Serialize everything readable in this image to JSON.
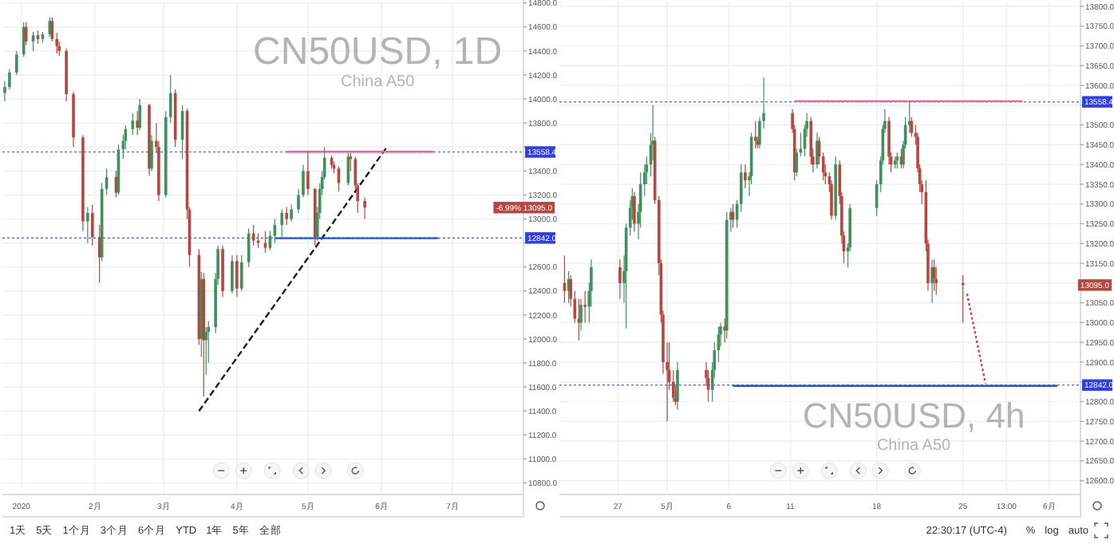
{
  "chart_data": [
    {
      "type": "candlestick",
      "grid": true,
      "x": [
        "2019-12-25",
        "2019-12-27",
        "2019-12-30",
        "2020-01-02",
        "2020-01-03",
        "2020-01-06",
        "2020-01-08",
        "2020-01-10",
        "2020-01-13",
        "2020-01-14",
        "2020-01-16",
        "2020-01-17",
        "2020-01-20",
        "2020-01-23",
        "2020-01-27",
        "2020-01-29",
        "2020-01-31",
        "2020-02-03",
        "2020-02-04",
        "2020-02-06",
        "2020-02-10",
        "2020-02-11",
        "2020-02-13",
        "2020-02-14",
        "2020-02-17",
        "2020-02-19",
        "2020-02-20",
        "2020-02-24",
        "2020-02-25",
        "2020-02-27",
        "2020-02-28",
        "2020-03-02",
        "2020-03-04",
        "2020-03-06",
        "2020-03-09",
        "2020-03-11",
        "2020-03-12",
        "2020-03-16",
        "2020-03-17",
        "2020-03-18",
        "2020-03-19",
        "2020-03-20",
        "2020-03-23",
        "2020-03-24",
        "2020-03-26",
        "2020-03-30",
        "2020-04-01",
        "2020-04-03",
        "2020-04-06",
        "2020-04-08",
        "2020-04-10",
        "2020-04-13",
        "2020-04-15",
        "2020-04-17",
        "2020-04-20",
        "2020-04-22",
        "2020-04-24",
        "2020-04-27",
        "2020-04-29",
        "2020-05-01",
        "2020-05-04",
        "2020-05-05",
        "2020-05-06",
        "2020-05-07",
        "2020-05-08",
        "2020-05-11",
        "2020-05-12",
        "2020-05-14",
        "2020-05-18",
        "2020-05-19",
        "2020-05-21",
        "2020-05-22",
        "2020-05-25"
      ],
      "ohlc": [
        [
          14050,
          14150,
          13980,
          14100
        ],
        [
          14100,
          14250,
          14080,
          14220
        ],
        [
          14220,
          14400,
          14200,
          14370
        ],
        [
          14370,
          14640,
          14350,
          14600
        ],
        [
          14600,
          14640,
          14450,
          14480
        ],
        [
          14480,
          14560,
          14400,
          14530
        ],
        [
          14530,
          14570,
          14460,
          14500
        ],
        [
          14500,
          14560,
          14470,
          14540
        ],
        [
          14540,
          14680,
          14520,
          14650
        ],
        [
          14650,
          14680,
          14480,
          14500
        ],
        [
          14500,
          14550,
          14380,
          14440
        ],
        [
          14440,
          14480,
          14360,
          14400
        ],
        [
          14400,
          14420,
          13980,
          14040
        ],
        [
          14040,
          14060,
          13600,
          13680
        ],
        [
          13680,
          13700,
          12900,
          12980
        ],
        [
          12980,
          13100,
          12800,
          13050
        ],
        [
          13050,
          13120,
          12780,
          12850
        ],
        [
          12850,
          12950,
          12470,
          12680
        ],
        [
          12680,
          13300,
          12650,
          13250
        ],
        [
          13250,
          13420,
          13200,
          13350
        ],
        [
          13350,
          13400,
          13180,
          13220
        ],
        [
          13220,
          13620,
          13200,
          13580
        ],
        [
          13580,
          13700,
          13500,
          13650
        ],
        [
          13650,
          13780,
          13580,
          13750
        ],
        [
          13750,
          13880,
          13700,
          13820
        ],
        [
          13820,
          13900,
          13700,
          13760
        ],
        [
          13760,
          14000,
          13740,
          13950
        ],
        [
          13950,
          13960,
          13360,
          13420
        ],
        [
          13420,
          13700,
          13400,
          13650
        ],
        [
          13650,
          13800,
          13550,
          13600
        ],
        [
          13600,
          13650,
          13150,
          13200
        ],
        [
          13200,
          13900,
          13180,
          13850
        ],
        [
          13850,
          14200,
          13800,
          14050
        ],
        [
          14050,
          14080,
          13600,
          13660
        ],
        [
          13660,
          13950,
          13500,
          13900
        ],
        [
          13900,
          13920,
          13000,
          13080
        ],
        [
          13080,
          13100,
          12600,
          12700
        ],
        [
          12700,
          12750,
          11950,
          12000
        ],
        [
          12000,
          12560,
          11850,
          12500
        ],
        [
          12500,
          12550,
          11520,
          11990
        ],
        [
          11990,
          12100,
          11700,
          12060
        ],
        [
          12060,
          12150,
          11800,
          12100
        ],
        [
          12100,
          12550,
          12050,
          12500
        ],
        [
          12500,
          12780,
          12450,
          12750
        ],
        [
          12750,
          12780,
          12350,
          12400
        ],
        [
          12400,
          12700,
          12380,
          12650
        ],
        [
          12650,
          12700,
          12350,
          12420
        ],
        [
          12420,
          12700,
          12400,
          12640
        ],
        [
          12640,
          12920,
          12600,
          12880
        ],
        [
          12880,
          12950,
          12780,
          12820
        ],
        [
          12820,
          12880,
          12760,
          12800
        ],
        [
          12800,
          12900,
          12720,
          12760
        ],
        [
          12760,
          12900,
          12740,
          12860
        ],
        [
          12860,
          13000,
          12800,
          12950
        ],
        [
          12950,
          13080,
          12850,
          13050
        ],
        [
          13050,
          13100,
          12950,
          13000
        ],
        [
          13000,
          13120,
          12980,
          13080
        ],
        [
          13080,
          13250,
          13050,
          13200
        ],
        [
          13200,
          13450,
          13180,
          13400
        ],
        [
          13400,
          13560,
          13200,
          13250
        ],
        [
          13250,
          13260,
          12780,
          12850
        ],
        [
          12850,
          13100,
          12820,
          13050
        ],
        [
          13050,
          13300,
          13000,
          13250
        ],
        [
          13250,
          13400,
          13200,
          13350
        ],
        [
          13350,
          13600,
          13330,
          13510
        ],
        [
          13510,
          13530,
          13420,
          13450
        ],
        [
          13450,
          13480,
          13380,
          13420
        ],
        [
          13420,
          13440,
          13230,
          13300
        ],
        [
          13300,
          13550,
          13280,
          13520
        ],
        [
          13520,
          13550,
          13400,
          13500
        ],
        [
          13500,
          13520,
          13250,
          13280
        ],
        [
          13280,
          13300,
          13050,
          13150
        ],
        [
          13150,
          13180,
          13000,
          13095
        ]
      ],
      "colors": [
        "#3f8f5f",
        "#3f8f5f",
        "#3f8f5f",
        "#3f8f5f",
        "#b5473f",
        "#3f8f5f",
        "#b5473f",
        "#3f8f5f",
        "#3f8f5f",
        "#b5473f",
        "#b5473f",
        "#b5473f",
        "#b5473f",
        "#b5473f",
        "#b5473f",
        "#3f8f5f",
        "#b5473f",
        "#b5473f",
        "#3f8f5f",
        "#3f8f5f",
        "#b5473f",
        "#3f8f5f",
        "#3f8f5f",
        "#3f8f5f",
        "#3f8f5f",
        "#b5473f",
        "#3f8f5f",
        "#b5473f",
        "#3f8f5f",
        "#b5473f",
        "#b5473f",
        "#3f8f5f",
        "#3f8f5f",
        "#b5473f",
        "#3f8f5f",
        "#b5473f",
        "#b5473f",
        "#b5473f",
        "#3f8f5f",
        "#b5473f",
        "#3f8f5f",
        "#3f8f5f",
        "#3f8f5f",
        "#3f8f5f",
        "#b5473f",
        "#3f8f5f",
        "#b5473f",
        "#3f8f5f",
        "#3f8f5f",
        "#b5473f",
        "#b5473f",
        "#b5473f",
        "#3f8f5f",
        "#3f8f5f",
        "#3f8f5f",
        "#b5473f",
        "#3f8f5f",
        "#3f8f5f",
        "#3f8f5f",
        "#b5473f",
        "#b5473f",
        "#3f8f5f",
        "#3f8f5f",
        "#3f8f5f",
        "#3f8f5f",
        "#b5473f",
        "#b5473f",
        "#b5473f",
        "#3f8f5f",
        "#b5473f",
        "#b5473f",
        "#b5473f",
        "#b5473f"
      ],
      "xlim": [
        "2019-12-24",
        "2020-07-31"
      ],
      "xticks": [
        {
          "value": "2020-01-01",
          "label": "2020"
        },
        {
          "value": "2020-02-01",
          "label": "2月"
        },
        {
          "value": "2020-03-01",
          "label": "3月"
        },
        {
          "value": "2020-04-01",
          "label": "4月"
        },
        {
          "value": "2020-05-01",
          "label": "5月"
        },
        {
          "value": "2020-06-01",
          "label": "6月"
        },
        {
          "value": "2020-07-01",
          "label": "7月"
        }
      ],
      "ylim": [
        10704,
        14805
      ],
      "yticks": [
        {
          "value": 10800,
          "label": "10800.0"
        },
        {
          "value": 11000,
          "label": "11000.0"
        },
        {
          "value": 11200,
          "label": "11200.0"
        },
        {
          "value": 11400,
          "label": "11400.0"
        },
        {
          "value": 11600,
          "label": "11600.0"
        },
        {
          "value": 11800,
          "label": "11800.0"
        },
        {
          "value": 12000,
          "label": "12000.0"
        },
        {
          "value": 12200,
          "label": "12200.0"
        },
        {
          "value": 12400,
          "label": "12400.0"
        },
        {
          "value": 12600,
          "label": "12600.0"
        },
        {
          "value": 12800,
          "label": null
        },
        {
          "value": 13000,
          "label": "13000.0"
        },
        {
          "value": 13200,
          "label": "13200.0"
        },
        {
          "value": 13400,
          "label": "13400.0"
        },
        {
          "value": 13600,
          "label": null
        },
        {
          "value": 13800,
          "label": "13800.0"
        },
        {
          "value": 14000,
          "label": "14000.0"
        },
        {
          "value": 14200,
          "label": "14200.0"
        },
        {
          "value": 14400,
          "label": "14400.0"
        },
        {
          "value": 14600,
          "label": "14600.0"
        },
        {
          "value": 14800,
          "label": "14800.0"
        }
      ],
      "ref_lines": [
        {
          "axis": "y",
          "value": 13558.4,
          "label": "13558.4",
          "color": "#2f3dea",
          "line_style": "dotted"
        },
        {
          "axis": "y",
          "value": 12842.0,
          "label": "12842.0",
          "color": "#2f3dea",
          "line_style": "dotted"
        }
      ],
      "series": [
        {
          "type": "line",
          "x": [
            "2020-03-16",
            "2020-06-03"
          ],
          "values": [
            11400,
            13590
          ],
          "color": "#1a1a2e",
          "line_style": "dashed"
        },
        {
          "type": "line",
          "x": [
            "2020-04-22",
            "2020-06-23"
          ],
          "values": [
            13560,
            13560
          ],
          "color": "#f06292",
          "line_style": "solid"
        },
        {
          "type": "line",
          "x": [
            "2020-04-17",
            "2020-06-25"
          ],
          "values": [
            12840,
            12840
          ],
          "color": "#1e53e5",
          "line_style": "solid"
        }
      ],
      "annotations": [
        "CN50USD, 1D",
        "China A50",
        "-6.99%  13095.0"
      ]
    },
    {
      "type": "candlestick",
      "grid": true,
      "x": [
        "2020-04-22T16:00",
        "2020-04-23T00:00",
        "2020-04-23T04:00",
        "2020-04-23T12:00",
        "2020-04-23T20:00",
        "2020-04-24T00:00",
        "2020-04-24T08:00",
        "2020-04-24T16:00",
        "2020-04-24T20:00",
        "2020-04-27T04:00",
        "2020-04-27T12:00",
        "2020-04-27T16:00",
        "2020-04-28T00:00",
        "2020-04-28T04:00",
        "2020-04-28T08:00",
        "2020-04-28T16:00",
        "2020-04-28T20:00",
        "2020-04-29T04:00",
        "2020-04-29T08:00",
        "2020-04-29T16:00",
        "2020-04-29T20:00",
        "2020-04-30T00:00",
        "2020-04-30T08:00",
        "2020-04-30T12:00",
        "2020-04-30T16:00",
        "2020-05-01T00:00",
        "2020-05-01T04:00",
        "2020-05-01T12:00",
        "2020-05-01T16:00",
        "2020-05-01T20:00",
        "2020-05-04T04:00",
        "2020-05-04T08:00",
        "2020-05-04T16:00",
        "2020-05-04T20:00",
        "2020-05-05T04:00",
        "2020-05-05T08:00",
        "2020-05-05T16:00",
        "2020-05-05T20:00",
        "2020-05-06T04:00",
        "2020-05-06T08:00",
        "2020-05-06T16:00",
        "2020-05-07T00:00",
        "2020-05-07T08:00",
        "2020-05-07T16:00",
        "2020-05-07T20:00",
        "2020-05-08T04:00",
        "2020-05-08T08:00",
        "2020-05-08T12:00",
        "2020-05-08T20:00",
        "2020-05-11T04:00",
        "2020-05-11T08:00",
        "2020-05-11T12:00",
        "2020-05-11T20:00",
        "2020-05-12T04:00",
        "2020-05-12T08:00",
        "2020-05-12T16:00",
        "2020-05-12T20:00",
        "2020-05-13T04:00",
        "2020-05-13T08:00",
        "2020-05-13T16:00",
        "2020-05-13T20:00",
        "2020-05-14T04:00",
        "2020-05-14T08:00",
        "2020-05-14T16:00",
        "2020-05-15T00:00",
        "2020-05-15T04:00",
        "2020-05-15T08:00",
        "2020-05-15T16:00",
        "2020-05-15T20:00",
        "2020-05-18T00:00",
        "2020-05-18T08:00",
        "2020-05-18T12:00",
        "2020-05-18T16:00",
        "2020-05-19T00:00",
        "2020-05-19T04:00",
        "2020-05-19T12:00",
        "2020-05-19T16:00",
        "2020-05-20T00:00",
        "2020-05-20T04:00",
        "2020-05-20T08:00",
        "2020-05-20T16:00",
        "2020-05-20T20:00",
        "2020-05-21T04:00",
        "2020-05-21T08:00",
        "2020-05-21T12:00",
        "2020-05-21T16:00",
        "2020-05-22T00:00",
        "2020-05-22T04:00",
        "2020-05-22T12:00",
        "2020-05-22T16:00",
        "2020-05-22T20:00",
        "2020-05-25T00:00"
      ],
      "ohlc": [
        [
          13100,
          13170,
          13050,
          13080
        ],
        [
          13080,
          13130,
          13050,
          13110
        ],
        [
          13110,
          13120,
          13040,
          13060
        ],
        [
          13060,
          13080,
          13000,
          13010
        ],
        [
          13010,
          13060,
          12955,
          13000
        ],
        [
          13000,
          13060,
          12980,
          13045
        ],
        [
          13045,
          13080,
          13000,
          13040
        ],
        [
          13040,
          13100,
          13000,
          13080
        ],
        [
          13080,
          13160,
          13040,
          13140
        ],
        [
          13140,
          13160,
          13060,
          13100
        ],
        [
          13100,
          13170,
          13050,
          13130
        ],
        [
          13130,
          13250,
          12985,
          13240
        ],
        [
          13240,
          13310,
          13220,
          13290
        ],
        [
          13290,
          13340,
          13260,
          13320
        ],
        [
          13320,
          13330,
          13230,
          13250
        ],
        [
          13250,
          13300,
          13210,
          13280
        ],
        [
          13280,
          13380,
          13240,
          13350
        ],
        [
          13350,
          13400,
          13320,
          13380
        ],
        [
          13380,
          13420,
          13350,
          13400
        ],
        [
          13400,
          13480,
          13370,
          13450
        ],
        [
          13450,
          13550,
          13410,
          13460
        ],
        [
          13460,
          13470,
          13300,
          13310
        ],
        [
          13310,
          13320,
          13120,
          13150
        ],
        [
          13150,
          13160,
          13000,
          13020
        ],
        [
          13020,
          13030,
          12870,
          12900
        ],
        [
          12900,
          12950,
          12750,
          12880
        ],
        [
          12880,
          12950,
          12830,
          12850
        ],
        [
          12850,
          12880,
          12800,
          12810
        ],
        [
          12810,
          12840,
          12790,
          12800
        ],
        [
          12800,
          12900,
          12780,
          12880
        ],
        [
          12880,
          12900,
          12840,
          12860
        ],
        [
          12860,
          12880,
          12800,
          12830
        ],
        [
          12830,
          12900,
          12800,
          12880
        ],
        [
          12880,
          12950,
          12860,
          12930
        ],
        [
          12930,
          12990,
          12900,
          12970
        ],
        [
          12970,
          13000,
          12940,
          12990
        ],
        [
          12990,
          13010,
          12950,
          12980
        ],
        [
          12980,
          13280,
          12960,
          13260
        ],
        [
          13260,
          13290,
          13230,
          13280
        ],
        [
          13280,
          13300,
          13240,
          13260
        ],
        [
          13260,
          13310,
          13240,
          13300
        ],
        [
          13300,
          13400,
          13280,
          13380
        ],
        [
          13380,
          13400,
          13340,
          13360
        ],
        [
          13360,
          13380,
          13320,
          13370
        ],
        [
          13370,
          13480,
          13350,
          13470
        ],
        [
          13470,
          13510,
          13440,
          13460
        ],
        [
          13460,
          13470,
          13440,
          13450
        ],
        [
          13450,
          13520,
          13440,
          13510
        ],
        [
          13510,
          13620,
          13490,
          13530
        ],
        [
          13530,
          13540,
          13480,
          13490
        ],
        [
          13490,
          13500,
          13360,
          13380
        ],
        [
          13380,
          13440,
          13370,
          13430
        ],
        [
          13430,
          13480,
          13420,
          13440
        ],
        [
          13440,
          13500,
          13420,
          13490
        ],
        [
          13490,
          13530,
          13470,
          13510
        ],
        [
          13510,
          13520,
          13400,
          13420
        ],
        [
          13420,
          13440,
          13380,
          13400
        ],
        [
          13400,
          13480,
          13390,
          13460
        ],
        [
          13460,
          13470,
          13400,
          13420
        ],
        [
          13420,
          13430,
          13360,
          13380
        ],
        [
          13380,
          13400,
          13350,
          13370
        ],
        [
          13370,
          13380,
          13330,
          13350
        ],
        [
          13350,
          13360,
          13260,
          13270
        ],
        [
          13270,
          13420,
          13260,
          13400
        ],
        [
          13400,
          13410,
          13300,
          13320
        ],
        [
          13320,
          13330,
          13200,
          13220
        ],
        [
          13220,
          13230,
          13150,
          13180
        ],
        [
          13180,
          13200,
          13140,
          13190
        ],
        [
          13190,
          13300,
          13180,
          13290
        ],
        [
          13290,
          13360,
          13270,
          13350
        ],
        [
          13350,
          13420,
          13330,
          13410
        ],
        [
          13410,
          13500,
          13400,
          13490
        ],
        [
          13490,
          13540,
          13480,
          13510
        ],
        [
          13510,
          13520,
          13400,
          13420
        ],
        [
          13420,
          13430,
          13380,
          13400
        ],
        [
          13400,
          13420,
          13390,
          13410
        ],
        [
          13410,
          13430,
          13390,
          13420
        ],
        [
          13420,
          13440,
          13390,
          13400
        ],
        [
          13400,
          13460,
          13390,
          13450
        ],
        [
          13450,
          13520,
          13440,
          13500
        ],
        [
          13500,
          13560,
          13480,
          13510
        ],
        [
          13510,
          13520,
          13470,
          13480
        ],
        [
          13480,
          13500,
          13450,
          13470
        ],
        [
          13470,
          13480,
          13380,
          13390
        ],
        [
          13390,
          13400,
          13330,
          13350
        ],
        [
          13350,
          13360,
          13300,
          13330
        ],
        [
          13330,
          13360,
          13180,
          13200
        ],
        [
          13200,
          13210,
          13080,
          13100
        ],
        [
          13100,
          13160,
          13050,
          13140
        ],
        [
          13140,
          13160,
          13080,
          13110
        ],
        [
          13110,
          13140,
          13070,
          13100
        ],
        [
          13100,
          13120,
          13000,
          13095
        ]
      ],
      "colors": [
        "#b5473f",
        "#3f8f5f",
        "#b5473f",
        "#b5473f",
        "#b5473f",
        "#3f8f5f",
        "#b5473f",
        "#3f8f5f",
        "#3f8f5f",
        "#b5473f",
        "#3f8f5f",
        "#3f8f5f",
        "#3f8f5f",
        "#3f8f5f",
        "#b5473f",
        "#3f8f5f",
        "#3f8f5f",
        "#3f8f5f",
        "#3f8f5f",
        "#3f8f5f",
        "#3f8f5f",
        "#b5473f",
        "#b5473f",
        "#b5473f",
        "#b5473f",
        "#b5473f",
        "#b5473f",
        "#b5473f",
        "#b5473f",
        "#3f8f5f",
        "#b5473f",
        "#b5473f",
        "#3f8f5f",
        "#3f8f5f",
        "#3f8f5f",
        "#3f8f5f",
        "#b5473f",
        "#3f8f5f",
        "#3f8f5f",
        "#b5473f",
        "#3f8f5f",
        "#3f8f5f",
        "#b5473f",
        "#3f8f5f",
        "#3f8f5f",
        "#b5473f",
        "#b5473f",
        "#3f8f5f",
        "#3f8f5f",
        "#b5473f",
        "#b5473f",
        "#3f8f5f",
        "#3f8f5f",
        "#3f8f5f",
        "#3f8f5f",
        "#b5473f",
        "#b5473f",
        "#3f8f5f",
        "#b5473f",
        "#b5473f",
        "#b5473f",
        "#b5473f",
        "#b5473f",
        "#3f8f5f",
        "#b5473f",
        "#b5473f",
        "#b5473f",
        "#3f8f5f",
        "#3f8f5f",
        "#3f8f5f",
        "#3f8f5f",
        "#3f8f5f",
        "#3f8f5f",
        "#b5473f",
        "#b5473f",
        "#3f8f5f",
        "#3f8f5f",
        "#b5473f",
        "#3f8f5f",
        "#3f8f5f",
        "#3f8f5f",
        "#b5473f",
        "#b5473f",
        "#b5473f",
        "#b5473f",
        "#b5473f",
        "#b5473f",
        "#b5473f",
        "#3f8f5f",
        "#b5473f",
        "#b5473f",
        "#b5473f"
      ],
      "xlim": [
        "2020-04-22T06:00",
        "2020-06-03T13:00"
      ],
      "xticks": [
        {
          "value": "2020-04-27",
          "label": "27"
        },
        {
          "value": "2020-05-01",
          "label": "5月"
        },
        {
          "value": "2020-05-06",
          "label": "6"
        },
        {
          "value": "2020-05-11",
          "label": "11"
        },
        {
          "value": "2020-05-18",
          "label": "18"
        },
        {
          "value": "2020-05-25",
          "label": "25"
        },
        {
          "value": "2020-05-28T13:00",
          "label": "13:00"
        },
        {
          "value": "2020-06-01",
          "label": "6月"
        }
      ],
      "ylim": [
        12565,
        13810
      ],
      "yticks": [
        {
          "value": 12600,
          "label": "12600.0"
        },
        {
          "value": 12650,
          "label": "12650.0"
        },
        {
          "value": 12700,
          "label": "12700.0"
        },
        {
          "value": 12750,
          "label": "12750.0"
        },
        {
          "value": 12800,
          "label": "12800.0"
        },
        {
          "value": 12850,
          "label": null
        },
        {
          "value": 12900,
          "label": "12900.0"
        },
        {
          "value": 12950,
          "label": "12950.0"
        },
        {
          "value": 13000,
          "label": "13000.0"
        },
        {
          "value": 13050,
          "label": "13050.0"
        },
        {
          "value": 13100,
          "label": null
        },
        {
          "value": 13150,
          "label": "13150.0"
        },
        {
          "value": 13200,
          "label": "13200.0"
        },
        {
          "value": 13250,
          "label": "13250.0"
        },
        {
          "value": 13300,
          "label": "13300.0"
        },
        {
          "value": 13350,
          "label": "13350.0"
        },
        {
          "value": 13400,
          "label": "13400.0"
        },
        {
          "value": 13450,
          "label": "13450.0"
        },
        {
          "value": 13500,
          "label": "13500.0"
        },
        {
          "value": 13550,
          "label": null
        },
        {
          "value": 13600,
          "label": "13600.0"
        },
        {
          "value": 13650,
          "label": "13650.0"
        },
        {
          "value": 13700,
          "label": "13700.0"
        },
        {
          "value": 13750,
          "label": "13750.0"
        },
        {
          "value": 13800,
          "label": "13800.0"
        }
      ],
      "ref_lines": [
        {
          "axis": "y",
          "value": 13558.4,
          "label": "13558.4",
          "color": "#2f3dea",
          "line_style": "dotted"
        },
        {
          "axis": "y",
          "value": 12842.0,
          "label": "12842.0",
          "color": "#2f3dea",
          "line_style": "dotted"
        }
      ],
      "series": [
        {
          "type": "line",
          "x": [
            "2020-05-11T08:00",
            "2020-05-29T20:00"
          ],
          "values": [
            13560,
            13560
          ],
          "color": "#f06292",
          "line_style": "solid"
        },
        {
          "type": "line",
          "x": [
            "2020-05-06T08:00",
            "2020-06-01T16:00"
          ],
          "values": [
            12840,
            12840
          ],
          "color": "#1e53e5",
          "line_style": "solid"
        },
        {
          "type": "line",
          "x": [
            "2020-05-25T08:00",
            "2020-05-26T20:00"
          ],
          "values": [
            13073,
            12846
          ],
          "color": "#e53935",
          "line_style": "dotted"
        }
      ],
      "annotations": [
        "CN50USD, 4h",
        "China A50",
        "13095.0"
      ]
    },
    {
      "type": "other",
      "annotations": [
        "1天",
        "5天",
        "1个月",
        "3个月",
        "6个月",
        "YTD",
        "1年",
        "5年",
        "全部"
      ]
    },
    {
      "type": "other",
      "annotations": [
        "22:30:17 (UTC-4)",
        "%",
        "log",
        "auto"
      ]
    }
  ]
}
